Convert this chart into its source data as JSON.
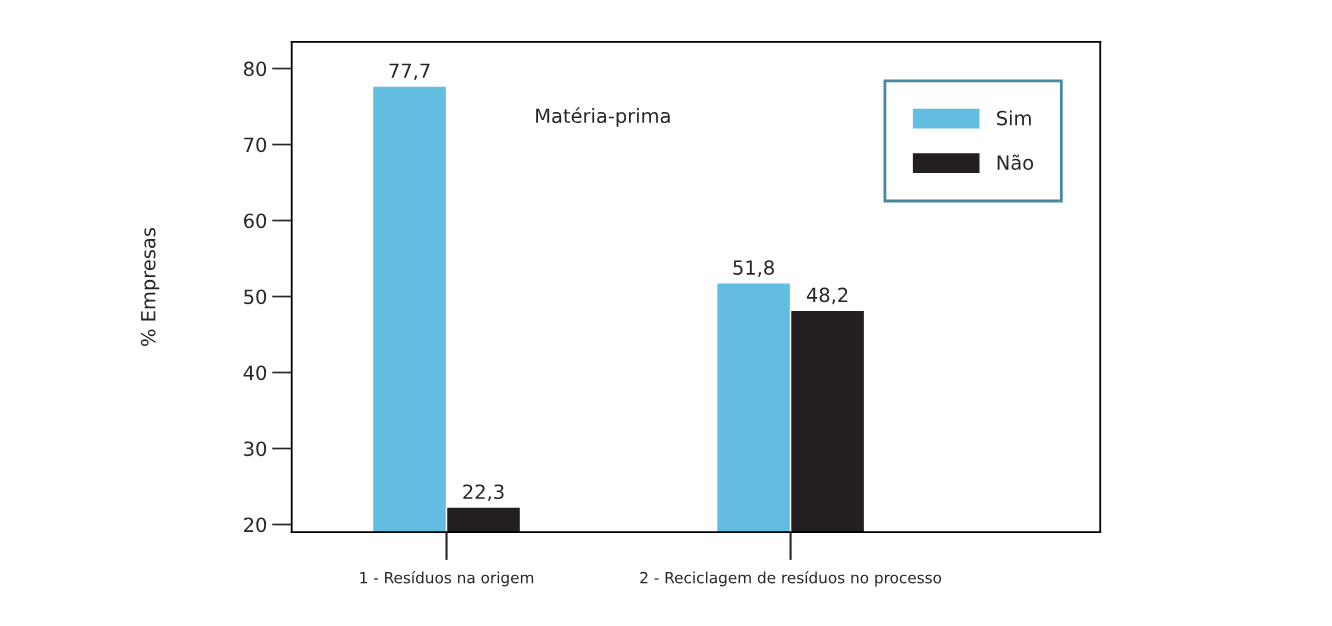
{
  "chart_data": {
    "type": "bar",
    "ylabel": "% Empresas",
    "categories": [
      "1 - Resíduos na origem",
      "2 - Reciclagem de resíduos no processo"
    ],
    "series": [
      {
        "name": "Sim",
        "color": "#63bde0",
        "values": [
          77.7,
          51.8
        ],
        "value_labels": [
          "77,7",
          "51,8"
        ]
      },
      {
        "name": "Não",
        "color": "#231f20",
        "values": [
          22.3,
          48.2
        ],
        "value_labels": [
          "22,3",
          "48,2"
        ]
      }
    ],
    "ylim": [
      19,
      83.5
    ],
    "yticks": [
      20,
      30,
      40,
      50,
      60,
      70,
      80
    ],
    "annotations": [
      "Matéria-prima"
    ],
    "grid": false,
    "legend": "top right"
  }
}
